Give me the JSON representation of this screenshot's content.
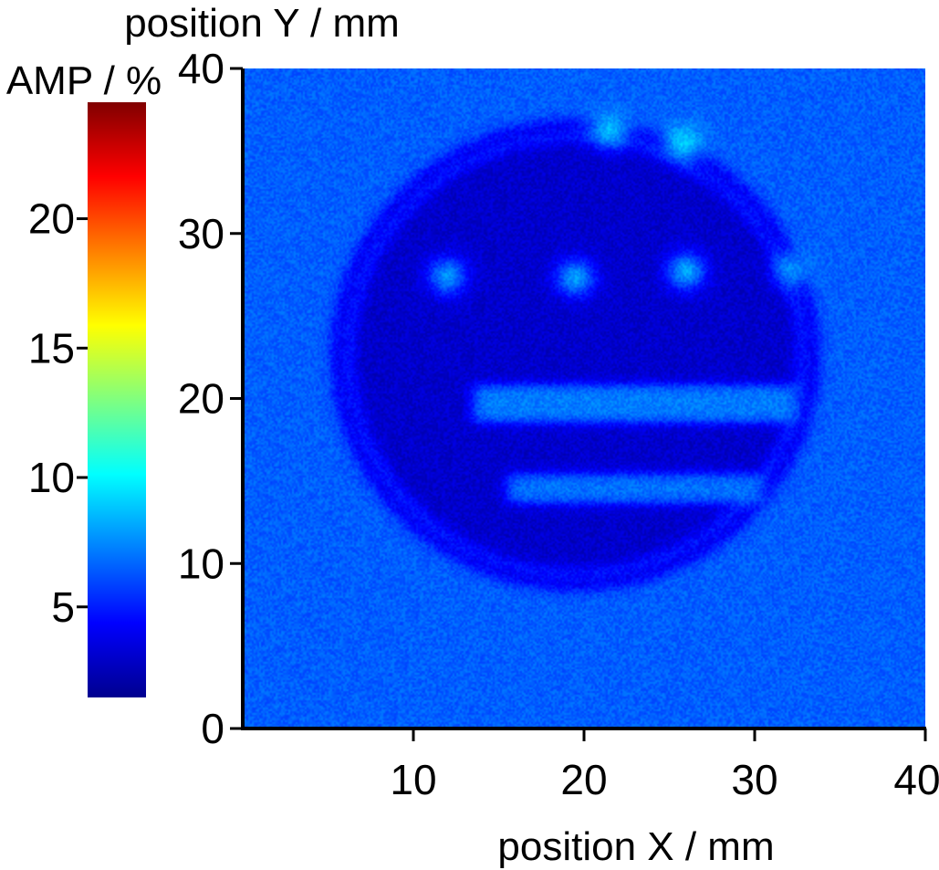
{
  "chart_data": {
    "type": "heatmap",
    "title": "",
    "xlabel": "position X / mm",
    "ylabel": "position Y / mm",
    "colorbar_label": "AMP / %",
    "xlim": [
      0,
      40
    ],
    "ylim": [
      0,
      40
    ],
    "x_ticks": [
      10,
      20,
      30,
      40
    ],
    "y_ticks": [
      0,
      10,
      20,
      30,
      40
    ],
    "colorbar_range": [
      1.5,
      24.5
    ],
    "colorbar_ticks": [
      5,
      10,
      15,
      20
    ],
    "colormap": "jet",
    "field": {
      "background_amp": 6.5,
      "disc": {
        "center_x": 19.5,
        "center_y": 22.6,
        "radius": 14.2,
        "amp": 3.2,
        "rim_amp": 4.6
      },
      "spots": [
        {
          "x": 12.0,
          "y": 27.4,
          "amp": 7.8
        },
        {
          "x": 19.5,
          "y": 27.3,
          "amp": 8.0
        },
        {
          "x": 26.0,
          "y": 27.7,
          "amp": 8.2
        },
        {
          "x": 32.2,
          "y": 27.8,
          "amp": 7.6
        },
        {
          "x": 21.5,
          "y": 36.3,
          "amp": 8.6
        },
        {
          "x": 25.8,
          "y": 35.5,
          "amp": 9.0
        }
      ],
      "bars": [
        {
          "x_from": 13.5,
          "x_to": 32.5,
          "y_from": 18.5,
          "y_to": 20.8,
          "amp": 7.2
        },
        {
          "x_from": 15.5,
          "x_to": 30.5,
          "y_from": 13.6,
          "y_to": 15.4,
          "amp": 7.0
        }
      ]
    }
  }
}
